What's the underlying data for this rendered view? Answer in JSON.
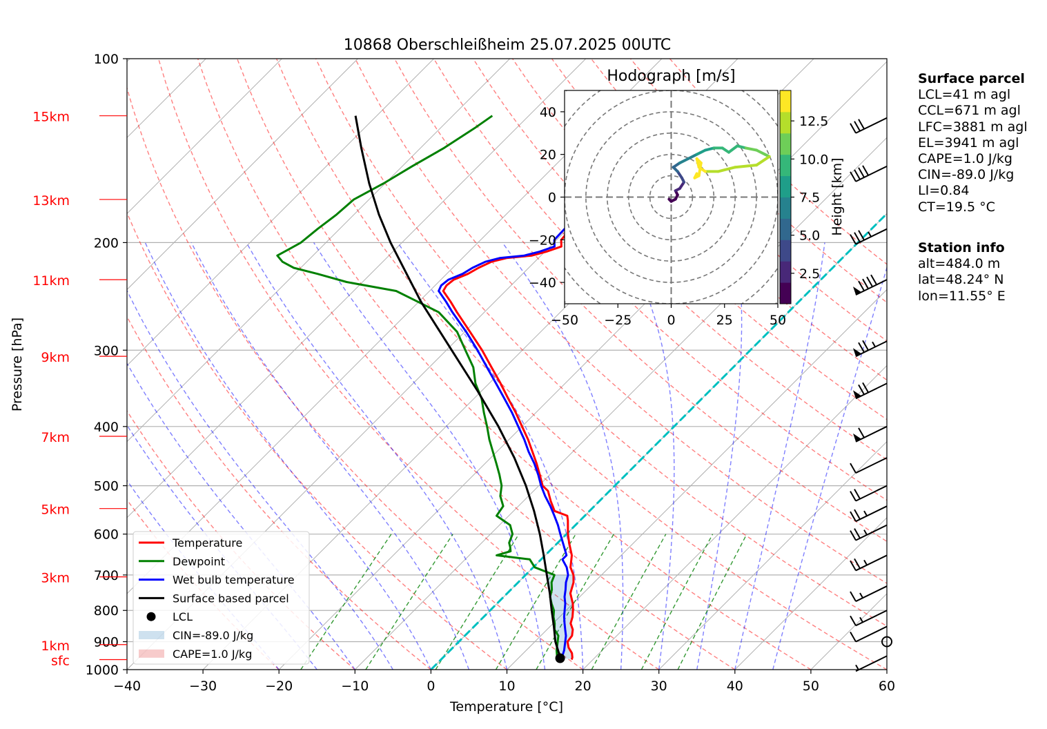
{
  "title": "10868 Oberschleißheim 25.07.2025 00UTC",
  "chart_data": {
    "type": "skew-t",
    "title": "10868 Oberschleißheim 25.07.2025 00UTC",
    "xlabel": "Temperature [°C]",
    "ylabel": "Pressure [hPa]",
    "xlim": [
      -40,
      60
    ],
    "ylim": [
      1000,
      100
    ],
    "x_ticks": [
      -40,
      -30,
      -20,
      -10,
      0,
      10,
      20,
      30,
      40,
      50,
      60
    ],
    "p_ticks": [
      1000,
      900,
      800,
      700,
      600,
      500,
      400,
      300,
      200,
      100
    ],
    "height_labels": [
      {
        "label": "sfc",
        "p": 963
      },
      {
        "label": "1km",
        "p": 910
      },
      {
        "label": "3km",
        "p": 705
      },
      {
        "label": "5km",
        "p": 545
      },
      {
        "label": "7km",
        "p": 415
      },
      {
        "label": "9km",
        "p": 307
      },
      {
        "label": "11km",
        "p": 230
      },
      {
        "label": "13km",
        "p": 170
      },
      {
        "label": "15km",
        "p": 124
      }
    ],
    "legend": [
      "Temperature",
      "Dewpoint",
      "Wet bulb temperature",
      "Surface based parcel",
      "LCL",
      "CIN=-89.0 J/kg",
      "CAPE=1.0 J/kg"
    ],
    "legend_position": "lower-left",
    "series": [
      {
        "name": "Temperature",
        "color": "#ff0000",
        "points": [
          [
            963,
            17.2
          ],
          [
            955,
            17.0
          ],
          [
            940,
            16.4
          ],
          [
            920,
            15.2
          ],
          [
            900,
            14.3
          ],
          [
            880,
            14.1
          ],
          [
            860,
            13.4
          ],
          [
            840,
            12.3
          ],
          [
            820,
            11.7
          ],
          [
            800,
            10.9
          ],
          [
            780,
            10.0
          ],
          [
            750,
            8.3
          ],
          [
            720,
            7.3
          ],
          [
            700,
            6.3
          ],
          [
            680,
            4.9
          ],
          [
            650,
            3.5
          ],
          [
            620,
            1.5
          ],
          [
            600,
            0.2
          ],
          [
            570,
            -1.6
          ],
          [
            560,
            -2.3
          ],
          [
            550,
            -4.6
          ],
          [
            530,
            -6.4
          ],
          [
            510,
            -8.1
          ],
          [
            500,
            -9.5
          ],
          [
            480,
            -11.3
          ],
          [
            460,
            -13.2
          ],
          [
            440,
            -15.3
          ],
          [
            420,
            -17.5
          ],
          [
            400,
            -20.0
          ],
          [
            380,
            -22.6
          ],
          [
            360,
            -25.5
          ],
          [
            340,
            -28.5
          ],
          [
            320,
            -31.8
          ],
          [
            300,
            -35.3
          ],
          [
            280,
            -39.3
          ],
          [
            260,
            -43.6
          ],
          [
            250,
            -45.8
          ],
          [
            240,
            -48.2
          ],
          [
            235,
            -48.5
          ],
          [
            230,
            -48.3
          ],
          [
            225,
            -47.2
          ],
          [
            220,
            -46.6
          ],
          [
            215,
            -45.7
          ],
          [
            212,
            -44.2
          ],
          [
            210,
            -41.2
          ],
          [
            207,
            -39.8
          ],
          [
            203,
            -38.5
          ],
          [
            198,
            -39.4
          ],
          [
            190,
            -39.6
          ],
          [
            180,
            -39.0
          ],
          [
            170,
            -38.7
          ],
          [
            160,
            -38.3
          ],
          [
            150,
            -38.0
          ],
          [
            140,
            -38.3
          ],
          [
            130,
            -37.6
          ],
          [
            125,
            -37.5
          ],
          [
            121,
            -36.5
          ]
        ]
      },
      {
        "name": "Dewpoint",
        "color": "#008000",
        "points": [
          [
            963,
            15.3
          ],
          [
            950,
            14.8
          ],
          [
            930,
            14.0
          ],
          [
            900,
            13.0
          ],
          [
            880,
            12.3
          ],
          [
            860,
            11.0
          ],
          [
            840,
            10.2
          ],
          [
            820,
            9.2
          ],
          [
            800,
            8.4
          ],
          [
            780,
            7.2
          ],
          [
            760,
            6.1
          ],
          [
            740,
            5.4
          ],
          [
            720,
            4.4
          ],
          [
            700,
            3.8
          ],
          [
            680,
            0.2
          ],
          [
            660,
            -1.5
          ],
          [
            650,
            -6.4
          ],
          [
            640,
            -5.1
          ],
          [
            630,
            -5.7
          ],
          [
            620,
            -6.4
          ],
          [
            600,
            -7.1
          ],
          [
            580,
            -8.6
          ],
          [
            560,
            -11.6
          ],
          [
            540,
            -12.0
          ],
          [
            520,
            -13.7
          ],
          [
            500,
            -14.9
          ],
          [
            480,
            -16.6
          ],
          [
            460,
            -18.5
          ],
          [
            440,
            -20.5
          ],
          [
            420,
            -22.6
          ],
          [
            400,
            -24.6
          ],
          [
            380,
            -26.8
          ],
          [
            360,
            -29.0
          ],
          [
            340,
            -31.8
          ],
          [
            320,
            -34.2
          ],
          [
            300,
            -37.5
          ],
          [
            280,
            -41.0
          ],
          [
            260,
            -46.0
          ],
          [
            250,
            -50.1
          ],
          [
            240,
            -54.4
          ],
          [
            232,
            -62.1
          ],
          [
            225,
            -67.0
          ],
          [
            220,
            -70.9
          ],
          [
            215,
            -73.2
          ],
          [
            210,
            -74.7
          ],
          [
            205,
            -74.0
          ],
          [
            200,
            -73.3
          ],
          [
            190,
            -72.9
          ],
          [
            180,
            -72.3
          ],
          [
            170,
            -72.0
          ],
          [
            160,
            -70.2
          ],
          [
            150,
            -68.7
          ],
          [
            140,
            -66.9
          ],
          [
            130,
            -65.5
          ],
          [
            124,
            -64.8
          ]
        ]
      },
      {
        "name": "Wet bulb temperature",
        "color": "#0000ff",
        "points": [
          [
            963,
            15.9
          ],
          [
            950,
            15.5
          ],
          [
            930,
            15.0
          ],
          [
            900,
            14.0
          ],
          [
            880,
            13.3
          ],
          [
            860,
            12.4
          ],
          [
            840,
            11.5
          ],
          [
            820,
            10.6
          ],
          [
            800,
            9.8
          ],
          [
            780,
            9.0
          ],
          [
            760,
            8.0
          ],
          [
            740,
            7.2
          ],
          [
            720,
            6.3
          ],
          [
            700,
            5.6
          ],
          [
            680,
            4.4
          ],
          [
            660,
            2.8
          ],
          [
            650,
            2.8
          ],
          [
            630,
            1.4
          ],
          [
            600,
            -0.8
          ],
          [
            580,
            -2.3
          ],
          [
            560,
            -4.0
          ],
          [
            540,
            -5.8
          ],
          [
            520,
            -7.8
          ],
          [
            500,
            -9.7
          ],
          [
            480,
            -11.5
          ],
          [
            460,
            -13.5
          ],
          [
            440,
            -15.8
          ],
          [
            420,
            -18.0
          ],
          [
            400,
            -20.5
          ],
          [
            380,
            -23.1
          ],
          [
            360,
            -26.0
          ],
          [
            340,
            -29.1
          ],
          [
            320,
            -32.4
          ],
          [
            300,
            -35.9
          ],
          [
            280,
            -39.8
          ],
          [
            260,
            -44.2
          ],
          [
            250,
            -46.4
          ],
          [
            240,
            -48.8
          ],
          [
            235,
            -49.2
          ],
          [
            230,
            -49.0
          ],
          [
            225,
            -47.9
          ],
          [
            220,
            -47.4
          ],
          [
            215,
            -46.5
          ],
          [
            212,
            -45.1
          ],
          [
            210,
            -42.2
          ],
          [
            207,
            -40.7
          ],
          [
            203,
            -39.4
          ],
          [
            198,
            -40.3
          ],
          [
            190,
            -40.4
          ],
          [
            180,
            -39.8
          ],
          [
            170,
            -39.5
          ],
          [
            160,
            -39.0
          ],
          [
            150,
            -38.7
          ],
          [
            140,
            -39.0
          ],
          [
            130,
            -38.3
          ],
          [
            125,
            -38.2
          ],
          [
            121,
            -37.2
          ]
        ]
      },
      {
        "name": "Surface based parcel",
        "color": "#000000",
        "points": [
          [
            963,
            15.6
          ],
          [
            957,
            15.5
          ],
          [
            900,
            12.7
          ],
          [
            850,
            10.5
          ],
          [
            800,
            8.1
          ],
          [
            750,
            5.6
          ],
          [
            700,
            2.8
          ],
          [
            650,
            -0.2
          ],
          [
            600,
            -3.5
          ],
          [
            550,
            -7.3
          ],
          [
            500,
            -11.7
          ],
          [
            450,
            -16.9
          ],
          [
            400,
            -23.1
          ],
          [
            350,
            -30.5
          ],
          [
            300,
            -39.3
          ],
          [
            250,
            -49.7
          ],
          [
            200,
            -61.5
          ],
          [
            180,
            -66.7
          ],
          [
            160,
            -72.1
          ],
          [
            140,
            -77.8
          ],
          [
            124,
            -82.8
          ]
        ]
      }
    ],
    "lcl": {
      "p": 958,
      "t": 15.5
    },
    "wind_barbs_kt": [
      {
        "p": 950,
        "speed": 5
      },
      {
        "p": 900,
        "speed": 0
      },
      {
        "p": 850,
        "speed": 10
      },
      {
        "p": 800,
        "speed": 15
      },
      {
        "p": 730,
        "speed": 15
      },
      {
        "p": 650,
        "speed": 25
      },
      {
        "p": 580,
        "speed": 25
      },
      {
        "p": 540,
        "speed": 25
      },
      {
        "p": 500,
        "speed": 20
      },
      {
        "p": 450,
        "speed": 10
      },
      {
        "p": 400,
        "speed": 60
      },
      {
        "p": 340,
        "speed": 70
      },
      {
        "p": 290,
        "speed": 75
      },
      {
        "p": 230,
        "speed": 90
      },
      {
        "p": 190,
        "speed": 35
      },
      {
        "p": 150,
        "speed": 40
      },
      {
        "p": 125,
        "speed": 30
      }
    ],
    "hodograph": {
      "title": "Hodograph [m/s]",
      "xlim": [
        -50,
        50
      ],
      "ylim": [
        -50,
        50
      ],
      "x_ticks": [
        -50,
        -25,
        0,
        25,
        50
      ],
      "y_ticks": [
        -40,
        -20,
        0,
        20,
        40
      ],
      "colorbar_label": "Height [km]",
      "colorbar_ticks": [
        "2.5",
        "5.0",
        "7.5",
        "10.0",
        "12.5"
      ],
      "colorbar_range": [
        0.5,
        14.5
      ],
      "points": [
        [
          -1,
          -1,
          0.5
        ],
        [
          0,
          -2,
          0.8
        ],
        [
          2,
          -1,
          1.2
        ],
        [
          3,
          1,
          1.8
        ],
        [
          2,
          3,
          2.4
        ],
        [
          4,
          4,
          3.0
        ],
        [
          6,
          7,
          3.6
        ],
        [
          5,
          9,
          4.2
        ],
        [
          3,
          12,
          5.0
        ],
        [
          1,
          14,
          5.8
        ],
        [
          4,
          16,
          6.6
        ],
        [
          8,
          18,
          7.4
        ],
        [
          12,
          20,
          8.0
        ],
        [
          16,
          22,
          8.6
        ],
        [
          20,
          23,
          9.0
        ],
        [
          24,
          23,
          9.4
        ],
        [
          27,
          21,
          9.8
        ],
        [
          31,
          24,
          10.2
        ],
        [
          35,
          23,
          10.6
        ],
        [
          40,
          22,
          11.0
        ],
        [
          44,
          20,
          11.4
        ],
        [
          46,
          19,
          11.8
        ],
        [
          40,
          15,
          12.1
        ],
        [
          30,
          14,
          12.4
        ],
        [
          22,
          12,
          12.8
        ],
        [
          16,
          12,
          13.2
        ],
        [
          13,
          14,
          13.5
        ],
        [
          12,
          18,
          13.8
        ],
        [
          14,
          16,
          14.0
        ],
        [
          13,
          10,
          14.2
        ],
        [
          11,
          9,
          14.4
        ],
        [
          12,
          11,
          14.5
        ]
      ]
    }
  },
  "surface_parcel": {
    "heading": "Surface parcel",
    "lines": [
      "LCL=41 m agl",
      "CCL=671 m agl",
      "LFC=3881 m agl",
      "EL=3941 m agl",
      "CAPE=1.0 J/kg",
      "CIN=-89.0 J/kg",
      "LI=0.84",
      "CT=19.5 °C"
    ]
  },
  "station_info": {
    "heading": "Station info",
    "lines": [
      "alt=484.0 m",
      "lat=48.24° N",
      "lon=11.55° E"
    ]
  }
}
